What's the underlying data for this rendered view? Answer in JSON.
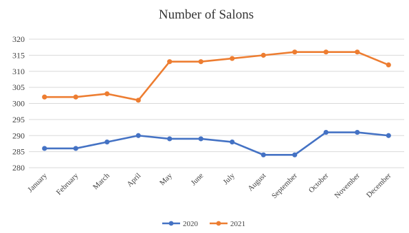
{
  "chart_data": {
    "type": "line",
    "title": "Number of Salons",
    "xlabel": "",
    "ylabel": "",
    "categories": [
      "January",
      "February",
      "March",
      "April",
      "May",
      "June",
      "July",
      "August",
      "September",
      "October",
      "November",
      "December"
    ],
    "ylim": [
      280,
      320
    ],
    "yticks": [
      280,
      285,
      290,
      295,
      300,
      305,
      310,
      315,
      320
    ],
    "grid": true,
    "legend_position": "bottom",
    "series": [
      {
        "name": "2020",
        "color": "#4472c4",
        "values": [
          286,
          286,
          288,
          290,
          289,
          289,
          288,
          284,
          284,
          291,
          291,
          290
        ]
      },
      {
        "name": "2021",
        "color": "#ed7d31",
        "values": [
          302,
          302,
          303,
          301,
          313,
          313,
          314,
          315,
          316,
          316,
          316,
          312
        ]
      }
    ]
  }
}
